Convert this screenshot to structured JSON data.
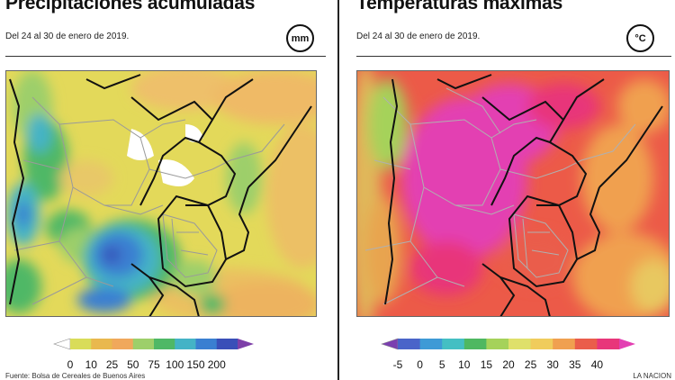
{
  "precipitation": {
    "title": "Precipitaciones acumuladas",
    "subtitle": "Del 24 al 30 de enero de 2019.",
    "unit": "mm",
    "legend_colors": [
      "#ffffff",
      "#d9dc59",
      "#e9b84e",
      "#f0a85c",
      "#9dcf6a",
      "#4fb866",
      "#44b3c6",
      "#3a7fd1",
      "#394fb8",
      "#7d3fa8"
    ],
    "legend_ticks": [
      "0",
      "10",
      "25",
      "50",
      "75",
      "100",
      "150",
      "200"
    ],
    "source_text": "Fuente: Bolsa de Cereales de Buenos Aires"
  },
  "temperature": {
    "title": "Temperaturas máximas",
    "subtitle": "Del 24 al 30 de enero de 2019.",
    "unit": "°C",
    "legend_colors": [
      "#7b3fb0",
      "#4a64c9",
      "#3e9ad6",
      "#44bfc3",
      "#4fb861",
      "#a5d25a",
      "#dfe06a",
      "#f0cc5c",
      "#f0a050",
      "#ea5d4b",
      "#e8367a",
      "#e33fb2"
    ],
    "legend_ticks": [
      "-5",
      "0",
      "5",
      "10",
      "15",
      "20",
      "25",
      "30",
      "35",
      "40"
    ],
    "credit_text": "LA NACION"
  },
  "colors": {
    "map_border": "#111111",
    "province_border": "#9a9a9a"
  }
}
